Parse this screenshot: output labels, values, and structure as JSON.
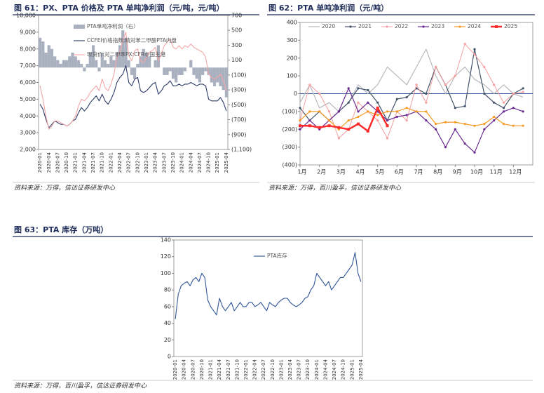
{
  "chart_data": [
    {
      "type": "line",
      "title": "图 61：PX、PTA 价格及 PTA 单吨净利润（元/吨，元/吨）",
      "source": "资料来源：万得，信达证券研发中心",
      "legend": "upper center",
      "categories": [
        "2020-01",
        null,
        null,
        "2020-04",
        null,
        null,
        "2020-07",
        null,
        null,
        "2020-10",
        null,
        null,
        "2021-01",
        null,
        null,
        "2021-04",
        null,
        null,
        "2021-07",
        null,
        null,
        "2021-10",
        null,
        null,
        "2022-01",
        null,
        null,
        "2022-04",
        null,
        null,
        "2022-07",
        null,
        null,
        "2022-10",
        null,
        null,
        "2023-01",
        null,
        null,
        "2023-04",
        null,
        null,
        "2023-07",
        null,
        null,
        "2023-10",
        null,
        null,
        "2024-01",
        null,
        null,
        "2024-04",
        null,
        null,
        "2024-07",
        null,
        null,
        "2024-10",
        null,
        null,
        "2025-01",
        null,
        null,
        "2025-04"
      ],
      "ylim": [
        2000,
        10000
      ],
      "yticks": [
        {
          "value": 2000,
          "label": "2,000"
        },
        {
          "value": 3000,
          "label": "3,000"
        },
        {
          "value": 4000,
          "label": "4,000"
        },
        {
          "value": 5000,
          "label": "5,000"
        },
        {
          "value": 6000,
          "label": "6,000"
        },
        {
          "value": 7000,
          "label": "7,000"
        },
        {
          "value": 8000,
          "label": "8,000"
        },
        {
          "value": 9000,
          "label": "9,000"
        },
        {
          "value": 10000,
          "label": "10,000"
        }
      ],
      "y2lim": [
        -1100,
        700
      ],
      "y2ticks": [
        700,
        500,
        300,
        100,
        {
          "value": -100,
          "label": "(100)"
        },
        {
          "value": -300,
          "label": "(300)"
        },
        {
          "value": -500,
          "label": "(500)"
        },
        {
          "value": -700,
          "label": "(700)"
        },
        {
          "value": -900,
          "label": "(900)"
        },
        {
          "value": -1100,
          "label": "(1,100)"
        }
      ],
      "series": [
        {
          "name": "PTA单吨净利润（右）",
          "type": "bar",
          "axis": "y2",
          "color": "#a9b0bf",
          "values": [
            400,
            350,
            200,
            300,
            250,
            150,
            100,
            50,
            100,
            100,
            150,
            200,
            150,
            100,
            50,
            -50,
            50,
            200,
            300,
            100,
            -50,
            200,
            100,
            50,
            150,
            100,
            200,
            300,
            500,
            400,
            100,
            -100,
            -150,
            50,
            150,
            250,
            200,
            150,
            0,
            100,
            300,
            0,
            -100,
            -100,
            -50,
            -150,
            -200,
            -100,
            -100,
            -50,
            0,
            100,
            -100,
            -150,
            -200,
            -100,
            -50,
            -100,
            -200,
            -250,
            -200,
            -250,
            -300,
            -400
          ]
        },
        {
          "name": "CCFEI价格指数:精对苯二甲酸PTA内盘",
          "color": "#2b3a67",
          "values": [
            4700,
            4400,
            3800,
            3300,
            3500,
            3700,
            3600,
            3500,
            3500,
            3400,
            3500,
            3700,
            3800,
            4200,
            4500,
            4300,
            4500,
            4800,
            5000,
            5200,
            4900,
            5300,
            4900,
            4700,
            5000,
            5400,
            6000,
            6300,
            6500,
            7000,
            6000,
            5800,
            6200,
            6300,
            5500,
            5400,
            5500,
            5700,
            5900,
            6000,
            5300,
            5500,
            5800,
            5900,
            6100,
            5800,
            5800,
            5900,
            5800,
            5900,
            5900,
            6000,
            5900,
            5800,
            5900,
            5900,
            5800,
            5000,
            4900,
            4900,
            4900,
            5100,
            4800,
            4300
          ]
        },
        {
          "name": "现货价:对二甲苯PX:CFR中国主港",
          "color": "#f4a6a6",
          "values": [
            5800,
            5000,
            4000,
            3200,
            3400,
            3700,
            3700,
            3600,
            3500,
            3400,
            3500,
            3700,
            4000,
            4600,
            5000,
            4900,
            5100,
            5400,
            5600,
            5800,
            5500,
            6200,
            5700,
            5500,
            5900,
            6500,
            7500,
            7800,
            8500,
            9000,
            7600,
            7300,
            7900,
            8000,
            7300,
            7200,
            7500,
            7800,
            7900,
            8100,
            7300,
            7700,
            8200,
            8400,
            8600,
            8100,
            8000,
            8200,
            8000,
            8200,
            8100,
            8300,
            8100,
            8000,
            7900,
            7800,
            7500,
            6500,
            6300,
            6200,
            6300,
            6500,
            6100,
            5500
          ]
        }
      ]
    },
    {
      "type": "line",
      "title": "图 62：PTA 单吨净利润（元/吨）",
      "source": "资料来源：万得，百川盈孚，信达证券研发中心",
      "legend": "top",
      "x": [
        1,
        1.5,
        2,
        2.5,
        3,
        3.5,
        4,
        4.5,
        5,
        5.5,
        6,
        6.5,
        7,
        7.5,
        8,
        8.5,
        9,
        9.5,
        10,
        10.5,
        11,
        11.5,
        12,
        12.5
      ],
      "xlim": [
        1,
        13
      ],
      "xticks": [
        {
          "value": 1,
          "label": "1月"
        },
        {
          "value": 2,
          "label": "2月"
        },
        {
          "value": 3,
          "label": "3月"
        },
        {
          "value": 4,
          "label": "4月"
        },
        {
          "value": 5,
          "label": "5月"
        },
        {
          "value": 6,
          "label": "6月"
        },
        {
          "value": 7,
          "label": "7月"
        },
        {
          "value": 8,
          "label": "8月"
        },
        {
          "value": 9,
          "label": "9月"
        },
        {
          "value": 10,
          "label": "10月"
        },
        {
          "value": 11,
          "label": "11月"
        },
        {
          "value": 12,
          "label": "12月"
        }
      ],
      "ylim": [
        -400,
        400
      ],
      "yticks": [
        400,
        300,
        200,
        100,
        0,
        {
          "value": -100,
          "label": "(100)"
        },
        {
          "value": -200,
          "label": "(200)"
        },
        {
          "value": -300,
          "label": "(300)"
        },
        {
          "value": -400,
          "label": "(400)"
        }
      ],
      "series": [
        {
          "name": "2020",
          "color": "#b8b8c0",
          "marker": "none",
          "width": 1.2,
          "values": [
            -50,
            50,
            -80,
            -50,
            -100,
            -50,
            50,
            0,
            50,
            150,
            100,
            50,
            150,
            250,
            100,
            0,
            100,
            150,
            80,
            50,
            0,
            50,
            0,
            -20
          ]
        },
        {
          "name": "2021",
          "color": "#44546a",
          "marker": "circle",
          "width": 1.2,
          "values": [
            -80,
            -150,
            -100,
            -150,
            -100,
            -50,
            30,
            20,
            -50,
            -150,
            -30,
            -20,
            30,
            0,
            150,
            50,
            -80,
            -70,
            250,
            0,
            -50,
            -80,
            0,
            30
          ]
        },
        {
          "name": "2022",
          "color": "#f4a0a0",
          "marker": "circle",
          "width": 1,
          "values": [
            -150,
            50,
            0,
            -100,
            -250,
            -200,
            -50,
            -100,
            -150,
            -250,
            -100,
            -150,
            50,
            -50,
            150,
            50,
            100,
            280,
            220,
            150,
            50,
            -50,
            0,
            10
          ]
        },
        {
          "name": "2023",
          "color": "#6a2c91",
          "marker": "circle",
          "width": 1.2,
          "values": [
            -200,
            -150,
            -200,
            -150,
            -100,
            30,
            -100,
            -50,
            -100,
            -150,
            -130,
            -120,
            -100,
            -150,
            -200,
            -300,
            -200,
            -280,
            -330,
            -200,
            -150,
            -100,
            -80,
            -100
          ]
        },
        {
          "name": "2024",
          "color": "#f59a23",
          "marker": "circle",
          "width": 1.2,
          "values": [
            -150,
            -100,
            -100,
            -150,
            -200,
            -150,
            -130,
            -100,
            -120,
            -100,
            -100,
            -80,
            -100,
            -100,
            -170,
            -160,
            -160,
            -170,
            -180,
            -170,
            -130,
            -170,
            -180,
            -180
          ]
        },
        {
          "name": "2025",
          "color": "#ff2a2a",
          "marker": "square",
          "width": 2.5,
          "values": [
            -180,
            -180,
            -190,
            -180,
            -190,
            -200,
            -170,
            -210,
            -80,
            -180,
            null,
            null,
            null,
            null,
            null,
            null,
            null,
            null,
            null,
            null,
            null,
            null,
            null,
            null
          ]
        }
      ]
    },
    {
      "type": "line",
      "title": "图 63：PTA 库存（万吨）",
      "source": "资料来源：万得，百川盈孚，信达证券研发中心",
      "legend": "upper left",
      "categories": [
        "2020-01",
        null,
        null,
        "2020-04",
        null,
        null,
        "2020-07",
        null,
        null,
        "2020-10",
        null,
        null,
        "2021-01",
        null,
        null,
        "2021-04",
        null,
        null,
        "2021-07",
        null,
        null,
        "2021-10",
        null,
        null,
        "2022-01",
        null,
        null,
        "2022-04",
        null,
        null,
        "2022-07",
        null,
        null,
        "2022-10",
        null,
        null,
        "2023-01",
        null,
        null,
        "2023-04",
        null,
        null,
        "2023-07",
        null,
        null,
        "2023-10",
        null,
        null,
        "2024-01",
        null,
        null,
        "2024-04",
        null,
        null,
        "2024-07",
        null,
        null,
        "2024-10",
        null,
        null,
        "2025-01",
        null,
        null,
        "2025-04"
      ],
      "ylim": [
        0,
        140
      ],
      "yticks": [
        0,
        20,
        40,
        60,
        80,
        100,
        120,
        140
      ],
      "series": [
        {
          "name": "PTA库存",
          "color": "#2f5597",
          "values": [
            45,
            75,
            85,
            88,
            90,
            85,
            92,
            95,
            90,
            100,
            95,
            68,
            60,
            55,
            50,
            70,
            60,
            55,
            60,
            65,
            55,
            60,
            65,
            60,
            60,
            65,
            65,
            60,
            62,
            65,
            60,
            55,
            65,
            62,
            60,
            65,
            68,
            70,
            70,
            65,
            62,
            60,
            62,
            65,
            70,
            72,
            80,
            85,
            100,
            95,
            90,
            85,
            90,
            80,
            85,
            90,
            95,
            95,
            100,
            105,
            110,
            125,
            100,
            90
          ]
        }
      ]
    }
  ]
}
